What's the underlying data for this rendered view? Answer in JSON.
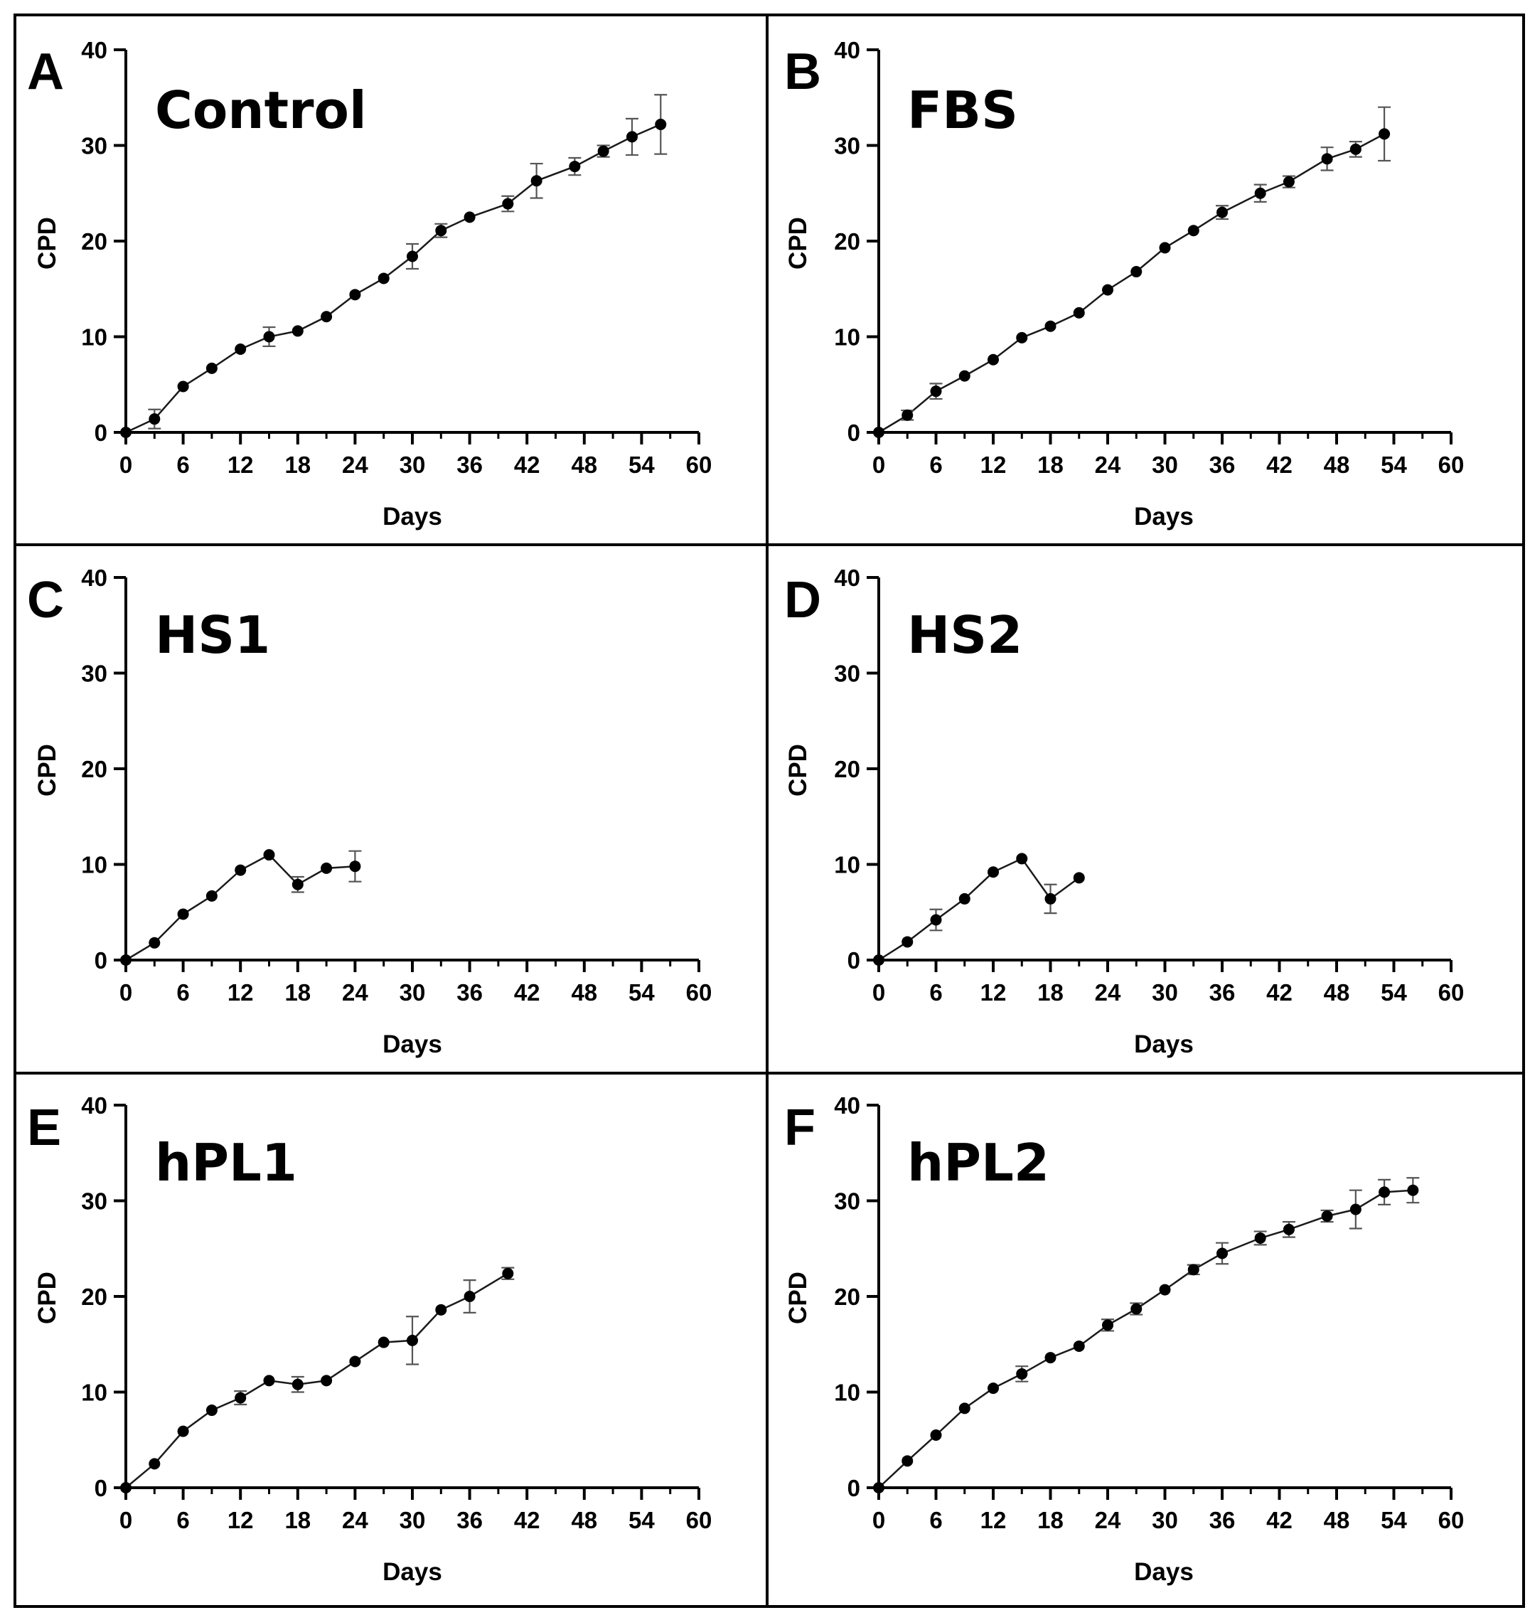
{
  "figure": {
    "colors": {
      "line": "#1a1a1a",
      "marker": "#000000",
      "errorbar": "#555555",
      "frame": "#000000",
      "axis": "#000000"
    }
  },
  "chart_data": [
    {
      "type": "line",
      "panel": "A",
      "title": "Control",
      "xlabel": "Days",
      "ylabel": "CPD",
      "xlim": [
        0,
        60
      ],
      "ylim": [
        0,
        40
      ],
      "xticks": [
        "0",
        "6",
        "12",
        "18",
        "24",
        "30",
        "36",
        "42",
        "48",
        "54",
        "60"
      ],
      "yticks": [
        "0",
        "10",
        "20",
        "30",
        "40"
      ],
      "series": [
        {
          "name": "Control",
          "x": [
            0,
            3,
            6,
            9,
            12,
            15,
            18,
            21,
            24,
            27,
            30,
            33,
            36,
            40,
            43,
            47,
            50,
            53,
            56
          ],
          "y": [
            0,
            1.4,
            4.8,
            6.7,
            8.7,
            10,
            10.6,
            12.1,
            14.4,
            16.1,
            18.4,
            21.1,
            22.5,
            23.9,
            26.3,
            27.8,
            29.4,
            30.9,
            32.2
          ],
          "err": [
            0,
            1,
            0.3,
            0.3,
            0.3,
            1,
            0.3,
            0.3,
            0.3,
            0.3,
            1.3,
            0.7,
            0.3,
            0.8,
            1.8,
            0.9,
            0.6,
            1.9,
            3.1
          ]
        }
      ]
    },
    {
      "type": "line",
      "panel": "B",
      "title": "FBS",
      "xlabel": "Days",
      "ylabel": "CPD",
      "xlim": [
        0,
        60
      ],
      "ylim": [
        0,
        40
      ],
      "xticks": [
        "0",
        "6",
        "12",
        "18",
        "24",
        "30",
        "36",
        "42",
        "48",
        "54",
        "60"
      ],
      "yticks": [
        "0",
        "10",
        "20",
        "30",
        "40"
      ],
      "series": [
        {
          "name": "FBS",
          "x": [
            0,
            3,
            6,
            9,
            12,
            15,
            18,
            21,
            24,
            27,
            30,
            33,
            36,
            40,
            43,
            47,
            50,
            53
          ],
          "y": [
            0,
            1.8,
            4.3,
            5.9,
            7.6,
            9.9,
            11.1,
            12.5,
            14.9,
            16.8,
            19.3,
            21.1,
            23,
            25,
            26.2,
            28.6,
            29.6,
            31.2
          ],
          "err": [
            0,
            0.5,
            0.8,
            0.3,
            0.3,
            0.3,
            0.3,
            0.3,
            0.3,
            0.3,
            0.3,
            0.3,
            0.7,
            0.9,
            0.6,
            1.2,
            0.8,
            2.8
          ]
        }
      ]
    },
    {
      "type": "line",
      "panel": "C",
      "title": "HS1",
      "xlabel": "Days",
      "ylabel": "CPD",
      "xlim": [
        0,
        60
      ],
      "ylim": [
        0,
        40
      ],
      "xticks": [
        "0",
        "6",
        "12",
        "18",
        "24",
        "30",
        "36",
        "42",
        "48",
        "54",
        "60"
      ],
      "yticks": [
        "0",
        "10",
        "20",
        "30",
        "40"
      ],
      "series": [
        {
          "name": "HS1",
          "x": [
            0,
            3,
            6,
            9,
            12,
            15,
            18,
            21,
            24
          ],
          "y": [
            0,
            1.8,
            4.8,
            6.7,
            9.4,
            11,
            7.9,
            9.6,
            9.8
          ],
          "err": [
            0,
            0.3,
            0.3,
            0.3,
            0.3,
            0.3,
            0.8,
            0.3,
            1.6
          ]
        }
      ]
    },
    {
      "type": "line",
      "panel": "D",
      "title": "HS2",
      "xlabel": "Days",
      "ylabel": "CPD",
      "xlim": [
        0,
        60
      ],
      "ylim": [
        0,
        40
      ],
      "xticks": [
        "0",
        "6",
        "12",
        "18",
        "24",
        "30",
        "36",
        "42",
        "48",
        "54",
        "60"
      ],
      "yticks": [
        "0",
        "10",
        "20",
        "30",
        "40"
      ],
      "series": [
        {
          "name": "HS2",
          "x": [
            0,
            3,
            6,
            9,
            12,
            15,
            18,
            21
          ],
          "y": [
            0,
            1.9,
            4.2,
            6.4,
            9.2,
            10.6,
            6.4,
            8.6
          ],
          "err": [
            0,
            0.3,
            1.1,
            0.3,
            0.3,
            0.3,
            1.5,
            0.3
          ]
        }
      ]
    },
    {
      "type": "line",
      "panel": "E",
      "title": "hPL1",
      "xlabel": "Days",
      "ylabel": "CPD",
      "xlim": [
        0,
        60
      ],
      "ylim": [
        0,
        40
      ],
      "xticks": [
        "0",
        "6",
        "12",
        "18",
        "24",
        "30",
        "36",
        "42",
        "48",
        "54",
        "60"
      ],
      "yticks": [
        "0",
        "10",
        "20",
        "30",
        "40"
      ],
      "series": [
        {
          "name": "hPL1",
          "x": [
            0,
            3,
            6,
            9,
            12,
            15,
            18,
            21,
            24,
            27,
            30,
            33,
            36,
            40
          ],
          "y": [
            0,
            2.5,
            5.9,
            8.1,
            9.4,
            11.2,
            10.8,
            11.2,
            13.2,
            15.2,
            15.4,
            18.6,
            20,
            22.4
          ],
          "err": [
            0,
            0.3,
            0.3,
            0.3,
            0.7,
            0.3,
            0.8,
            0.3,
            0.3,
            0.3,
            2.5,
            0.3,
            1.7,
            0.6
          ]
        }
      ]
    },
    {
      "type": "line",
      "panel": "F",
      "title": "hPL2",
      "xlabel": "Days",
      "ylabel": "CPD",
      "xlim": [
        0,
        60
      ],
      "ylim": [
        0,
        40
      ],
      "xticks": [
        "0",
        "6",
        "12",
        "18",
        "24",
        "30",
        "36",
        "42",
        "48",
        "54",
        "60"
      ],
      "yticks": [
        "0",
        "10",
        "20",
        "30",
        "40"
      ],
      "series": [
        {
          "name": "hPL2",
          "x": [
            0,
            3,
            6,
            9,
            12,
            15,
            18,
            21,
            24,
            27,
            30,
            33,
            36,
            40,
            43,
            47,
            50,
            53,
            56
          ],
          "y": [
            0,
            2.8,
            5.5,
            8.3,
            10.4,
            11.9,
            13.6,
            14.8,
            17,
            18.7,
            20.7,
            22.8,
            24.5,
            26.1,
            27,
            28.4,
            29.1,
            30.9,
            31.1
          ],
          "err": [
            0,
            0.3,
            0.3,
            0.3,
            0.3,
            0.8,
            0.3,
            0.3,
            0.6,
            0.6,
            0.3,
            0.5,
            1.1,
            0.7,
            0.8,
            0.6,
            2,
            1.3,
            1.3
          ]
        }
      ]
    }
  ]
}
